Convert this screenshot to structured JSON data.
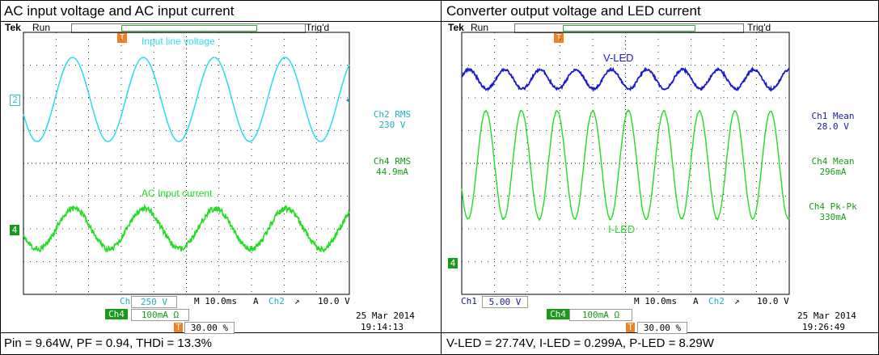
{
  "left": {
    "title": "AC input voltage and AC input current",
    "tek": "Tek",
    "run": "Run",
    "trig": "Trig'd",
    "trace_labels": {
      "voltage": "Input line voltage",
      "current": "AC Input current"
    },
    "ch2_marker": "2",
    "ch4_marker": "4",
    "meas": [
      {
        "name": "Ch2 RMS",
        "value": "230 V",
        "color": "#20b0c0"
      },
      {
        "name": "Ch4 RMS",
        "value": "44.9mA",
        "color": "#1a9a1a"
      }
    ],
    "status": {
      "ch_a": "Ch2",
      "ch_a_scale": "250 V",
      "ch_b": "Ch4",
      "ch_b_scale": "100mA Ω",
      "timebase": "M 10.0ms",
      "trig_mode": "A",
      "trig_ch": "Ch2",
      "trig_level": "10.0 V",
      "trig_pos": "30.00 %",
      "date": "25 Mar  2014",
      "time": "19:14:13"
    },
    "caption": "Pin = 9.64W, PF = 0.94, THDi = 13.3%"
  },
  "right": {
    "title": "Converter output voltage and LED current",
    "tek": "Tek",
    "run": "Run",
    "trig": "Trig'd",
    "trace_labels": {
      "voltage": "V-LED",
      "current": "I-LED"
    },
    "ch4_marker": "4",
    "meas": [
      {
        "name": "Ch1 Mean",
        "value": "28.0 V",
        "color": "#1a1aa0"
      },
      {
        "name": "Ch4 Mean",
        "value": "296mA",
        "color": "#1a9a1a"
      },
      {
        "name": "Ch4 Pk-Pk",
        "value": "330mA",
        "color": "#1a9a1a"
      }
    ],
    "status": {
      "ch_a": "Ch1",
      "ch_a_scale": "5.00 V",
      "ch_b": "Ch4",
      "ch_b_scale": "100mA Ω",
      "timebase": "M 10.0ms",
      "trig_mode": "A",
      "trig_ch": "Ch2",
      "trig_level": "10.0 V",
      "trig_pos": "30.00 %",
      "date": "25 Mar  2014",
      "time": "19:26:49"
    },
    "caption": "V-LED = 27.74V, I-LED = 0.299A, P-LED = 8.29W"
  },
  "colors": {
    "cyan": "#33ddee",
    "green": "#22dd22",
    "blue": "#1a1acc",
    "grid": "#000000"
  }
}
